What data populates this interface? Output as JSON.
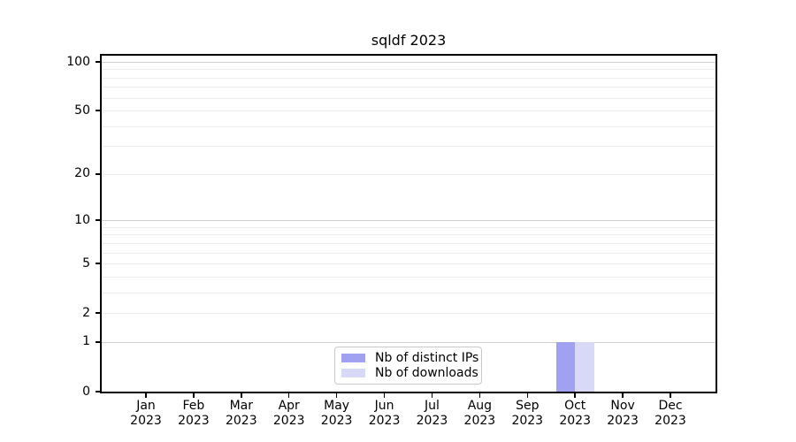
{
  "chart_data": {
    "type": "bar",
    "title": "sqldf 2023",
    "categories": [
      "Jan 2023",
      "Feb 2023",
      "Mar 2023",
      "Apr 2023",
      "May 2023",
      "Jun 2023",
      "Jul 2023",
      "Aug 2023",
      "Sep 2023",
      "Oct 2023",
      "Nov 2023",
      "Dec 2023"
    ],
    "series": [
      {
        "name": "Nb of distinct IPs",
        "color": "#a1a1f1",
        "values": [
          0,
          0,
          0,
          0,
          0,
          0,
          0,
          0,
          0,
          1,
          0,
          0
        ]
      },
      {
        "name": "Nb of downloads",
        "color": "#d8d8f7",
        "values": [
          0,
          0,
          0,
          0,
          0,
          0,
          0,
          0,
          0,
          1,
          0,
          0
        ]
      }
    ],
    "xlabel": "",
    "ylabel": "",
    "yscale": "log1p",
    "ylim": [
      0,
      100
    ],
    "ytick_labels": [
      0,
      1,
      2,
      5,
      10,
      20,
      50,
      100
    ],
    "grid_major_values": [
      1,
      10,
      100
    ],
    "grid_minor_values": [
      2,
      3,
      4,
      5,
      6,
      7,
      8,
      9,
      20,
      30,
      40,
      50,
      60,
      70,
      80,
      90
    ],
    "grid": "horizontal",
    "legend_position": "inside-bottom-center",
    "colors": {
      "spine": "#000000",
      "grid_major": "#d0d0d0",
      "grid_minor": "#ececec",
      "legend_border": "#c9c9c9",
      "background": "#ffffff"
    }
  }
}
